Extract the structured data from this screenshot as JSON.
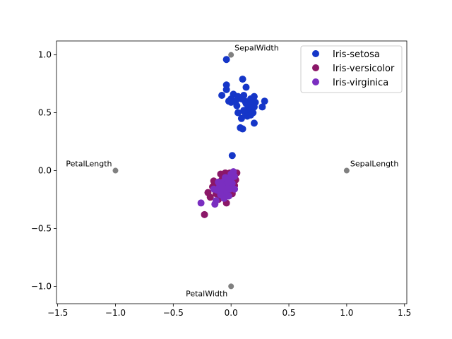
{
  "chart_data": {
    "type": "scatter",
    "title": "",
    "xlabel": "",
    "ylabel": "",
    "xlim": [
      -1.51,
      1.52
    ],
    "ylim": [
      -1.15,
      1.12
    ],
    "xticks": [
      "−1.5",
      "−1.0",
      "−0.5",
      "0.0",
      "0.5",
      "1.0",
      "1.5"
    ],
    "xtick_values": [
      -1.5,
      -1.0,
      -0.5,
      0.0,
      0.5,
      1.0,
      1.5
    ],
    "yticks": [
      "−1.0",
      "−0.5",
      "0.0",
      "0.5",
      "1.0"
    ],
    "ytick_values": [
      -1.0,
      -0.5,
      0.0,
      0.5,
      1.0
    ],
    "grid": false,
    "legend_placement": "top-right",
    "anchors": {
      "color": "#808080",
      "points": [
        {
          "label": "SepalLength",
          "x": 1.0,
          "y": 0.0
        },
        {
          "label": "SepalWidth",
          "x": 0.0,
          "y": 1.0
        },
        {
          "label": "PetalLength",
          "x": -1.0,
          "y": 0.0
        },
        {
          "label": "PetalWidth",
          "x": 0.0,
          "y": -1.0
        }
      ]
    },
    "series": [
      {
        "name": "Iris-setosa",
        "color": "#1536c8",
        "points": [
          [
            -0.04,
            0.96
          ],
          [
            0.1,
            0.79
          ],
          [
            -0.04,
            0.74
          ],
          [
            -0.04,
            0.7
          ],
          [
            -0.08,
            0.65
          ],
          [
            0.13,
            0.72
          ],
          [
            0.02,
            0.66
          ],
          [
            0.0,
            0.59
          ],
          [
            0.0,
            0.62
          ],
          [
            0.05,
            0.56
          ],
          [
            0.06,
            0.5
          ],
          [
            0.09,
            0.45
          ],
          [
            0.11,
            0.65
          ],
          [
            0.2,
            0.64
          ],
          [
            0.21,
            0.59
          ],
          [
            0.29,
            0.6
          ],
          [
            0.27,
            0.55
          ],
          [
            0.2,
            0.41
          ],
          [
            0.08,
            0.37
          ],
          [
            0.1,
            0.36
          ],
          [
            0.01,
            0.13
          ],
          [
            0.15,
            0.55
          ],
          [
            0.12,
            0.6
          ],
          [
            0.15,
            0.5
          ],
          [
            0.18,
            0.52
          ],
          [
            0.13,
            0.58
          ],
          [
            0.17,
            0.62
          ],
          [
            0.14,
            0.53
          ],
          [
            0.19,
            0.5
          ],
          [
            0.11,
            0.52
          ],
          [
            0.16,
            0.57
          ],
          [
            0.2,
            0.55
          ],
          [
            0.12,
            0.5
          ],
          [
            0.09,
            0.62
          ],
          [
            0.06,
            0.64
          ],
          [
            0.04,
            0.6
          ],
          [
            0.17,
            0.48
          ],
          [
            -0.02,
            0.6
          ],
          [
            0.14,
            0.47
          ]
        ]
      },
      {
        "name": "Iris-versicolor",
        "color": "#8b1768",
        "points": [
          [
            -0.23,
            -0.38
          ],
          [
            -0.2,
            -0.19
          ],
          [
            -0.18,
            -0.23
          ],
          [
            -0.15,
            -0.09
          ],
          [
            -0.09,
            -0.03
          ],
          [
            -0.05,
            -0.02
          ],
          [
            0.05,
            -0.02
          ],
          [
            -0.04,
            -0.28
          ],
          [
            0.03,
            -0.13
          ],
          [
            -0.12,
            -0.12
          ],
          [
            -0.08,
            -0.08
          ],
          [
            -0.02,
            -0.05
          ],
          [
            0.02,
            -0.04
          ],
          [
            -0.1,
            -0.17
          ],
          [
            -0.06,
            -0.12
          ],
          [
            -0.13,
            -0.2
          ],
          [
            0.0,
            -0.1
          ],
          [
            -0.07,
            -0.05
          ],
          [
            0.04,
            -0.08
          ],
          [
            -0.11,
            -0.25
          ],
          [
            -0.16,
            -0.14
          ],
          [
            -0.03,
            -0.18
          ],
          [
            -0.01,
            -0.02
          ],
          [
            -0.06,
            -0.22
          ],
          [
            0.01,
            -0.2
          ]
        ]
      },
      {
        "name": "Iris-virginica",
        "color": "#7a2ec0",
        "points": [
          [
            -0.26,
            -0.28
          ],
          [
            -0.14,
            -0.29
          ],
          [
            0.02,
            -0.01
          ],
          [
            0.03,
            -0.16
          ],
          [
            -0.05,
            -0.15
          ],
          [
            -0.08,
            -0.18
          ],
          [
            -0.02,
            -0.12
          ],
          [
            -0.1,
            -0.14
          ],
          [
            -0.04,
            -0.2
          ],
          [
            0.0,
            -0.07
          ],
          [
            -0.07,
            -0.1
          ],
          [
            -0.12,
            -0.17
          ],
          [
            -0.03,
            -0.09
          ],
          [
            -0.06,
            -0.24
          ],
          [
            0.01,
            -0.11
          ],
          [
            -0.09,
            -0.21
          ],
          [
            -0.13,
            -0.26
          ],
          [
            -0.01,
            -0.16
          ],
          [
            -0.05,
            -0.06
          ],
          [
            0.03,
            -0.05
          ],
          [
            -0.11,
            -0.1
          ],
          [
            -0.08,
            -0.13
          ],
          [
            -0.02,
            -0.22
          ],
          [
            0.0,
            -0.03
          ],
          [
            -0.15,
            -0.16
          ]
        ]
      }
    ]
  }
}
